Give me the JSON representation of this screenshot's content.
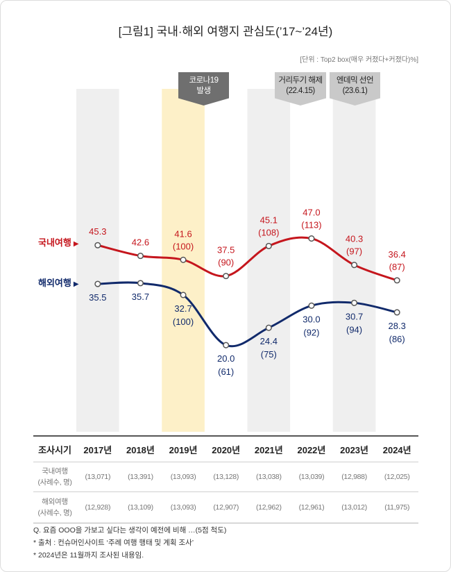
{
  "title": "[그림1] 국내·해외 여행지 관심도(’17~’24년)",
  "unit": "[단위 : Top2 box(매우 커졌다+커졌다)%]",
  "legend_marker": "▶",
  "annotations": {
    "covid": {
      "line1": "코로나19",
      "line2": "발생",
      "color": "#6f6f6f"
    },
    "distancing": {
      "line1": "거리두기 해제",
      "line2": "(22.4.15)",
      "color": "#c9c9c9"
    },
    "endemic": {
      "line1": "엔데믹 선언",
      "line2": "(23.6.1)",
      "color": "#c9c9c9"
    }
  },
  "chart_data": {
    "type": "line",
    "categories": [
      "2017년",
      "2018년",
      "2019년",
      "2020년",
      "2021년",
      "2022년",
      "2023년",
      "2024년"
    ],
    "highlight_category": "2019년",
    "series": [
      {
        "name": "국내여행",
        "color": "#c5161d",
        "values": [
          45.3,
          42.6,
          41.6,
          37.5,
          45.1,
          47.0,
          40.3,
          36.4
        ],
        "index": [
          null,
          null,
          100,
          90,
          108,
          113,
          97,
          87
        ],
        "label_position": "above"
      },
      {
        "name": "해외여행",
        "color": "#112a6b",
        "values": [
          35.5,
          35.7,
          32.7,
          20.0,
          24.4,
          30.0,
          30.7,
          28.3
        ],
        "index": [
          null,
          null,
          100,
          61,
          75,
          92,
          94,
          86
        ],
        "label_position": "below"
      }
    ]
  },
  "table": {
    "header_label": "조사시기",
    "rows": [
      {
        "label": "국내여행",
        "sublabel": "(사례수, 명)",
        "cells": [
          "(13,071)",
          "(13,391)",
          "(13,093)",
          "(13,128)",
          "(13,038)",
          "(13,039)",
          "(12,988)",
          "(12,025)"
        ]
      },
      {
        "label": "해외여행",
        "sublabel": "(사례수, 명)",
        "cells": [
          "(12,928)",
          "(13,109)",
          "(13,093)",
          "(12,907)",
          "(12,962)",
          "(12,961)",
          "(13,012)",
          "(11,975)"
        ]
      }
    ]
  },
  "footnotes": [
    "Q. 요즘 OOO을 가보고 싶다는 생각이 예전에 비해 …(5점 척도)",
    "* 출처 : 컨슈머인사이트 ‘주례 여행 행태 및 계획 조사’",
    "* 2024년은 11월까지 조사된 내용임."
  ]
}
